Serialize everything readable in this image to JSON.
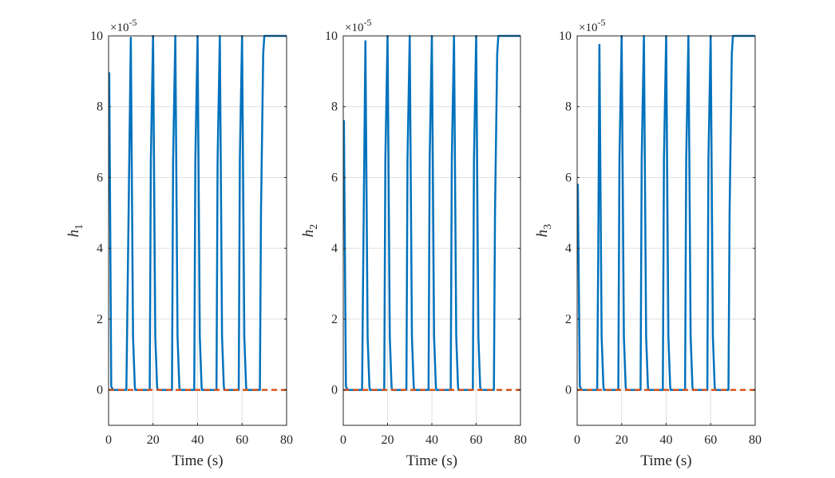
{
  "chart_data": [
    {
      "type": "line",
      "xlabel": "Time (s)",
      "ylabel_base": "h",
      "ylabel_sub": "1",
      "exponent_label": "×10",
      "exponent_power": "-5",
      "xlim": [
        0,
        80
      ],
      "ylim": [
        -1,
        10
      ],
      "xticks": [
        0,
        20,
        40,
        60,
        80
      ],
      "yticks": [
        0,
        2,
        4,
        6,
        8,
        10
      ],
      "grid": true,
      "colors": {
        "blue": "#0072BD",
        "orange": "#D95319"
      },
      "series": [
        {
          "style": "solid-blue",
          "x": [
            0,
            0.3,
            1.2,
            2,
            8,
            8.5,
            10,
            11,
            11.8,
            12,
            18.5,
            19,
            20,
            21,
            21.8,
            22,
            28.5,
            29,
            30,
            31,
            31.8,
            32,
            38.5,
            39,
            40,
            41,
            41.8,
            42,
            48.5,
            49,
            50,
            51,
            51.8,
            52,
            58.5,
            59,
            60,
            61,
            61.8,
            62,
            68,
            68.5,
            69.5,
            70,
            80
          ],
          "y": [
            8.95,
            8.95,
            0.1,
            0,
            0,
            2.5,
            9.95,
            1.5,
            0.1,
            0,
            0,
            6.5,
            10,
            1.5,
            0.1,
            0,
            0,
            6.5,
            10,
            1.5,
            0.1,
            0,
            0,
            6.5,
            10,
            1.5,
            0.1,
            0,
            0,
            6.5,
            10,
            1.5,
            0.1,
            0,
            0,
            6.5,
            10,
            1.5,
            0.1,
            0,
            0,
            5,
            9.5,
            10,
            10
          ]
        },
        {
          "style": "dashed-orange",
          "x": [
            0,
            80
          ],
          "y": [
            0,
            0
          ]
        }
      ]
    },
    {
      "type": "line",
      "xlabel": "Time (s)",
      "ylabel_base": "h",
      "ylabel_sub": "2",
      "exponent_label": "×10",
      "exponent_power": "-5",
      "xlim": [
        0,
        80
      ],
      "ylim": [
        -1,
        10
      ],
      "xticks": [
        0,
        20,
        40,
        60,
        80
      ],
      "yticks": [
        0,
        2,
        4,
        6,
        8,
        10
      ],
      "grid": true,
      "colors": {
        "blue": "#0072BD",
        "orange": "#D95319"
      },
      "series": [
        {
          "style": "solid-blue",
          "x": [
            0,
            0.3,
            1.2,
            2,
            8.5,
            9,
            10,
            11,
            11.8,
            12,
            18.5,
            19,
            20,
            21,
            21.8,
            22,
            28.5,
            29,
            30,
            31,
            31.8,
            32,
            38.5,
            39,
            40,
            41,
            41.8,
            42,
            48.5,
            49,
            50,
            51,
            51.8,
            52,
            58.5,
            59,
            60,
            61,
            61.8,
            62,
            68,
            68.5,
            69.5,
            70,
            80
          ],
          "y": [
            7.6,
            7.6,
            0.1,
            0,
            0,
            3.5,
            9.85,
            1.5,
            0.1,
            0,
            0,
            6.5,
            10,
            1.5,
            0.1,
            0,
            0,
            6.5,
            10,
            1.5,
            0.1,
            0,
            0,
            6.5,
            10,
            1.5,
            0.1,
            0,
            0,
            6.5,
            10,
            1.5,
            0.1,
            0,
            0,
            6.5,
            10,
            1.5,
            0.1,
            0,
            0,
            5,
            9.5,
            10,
            10
          ]
        },
        {
          "style": "dashed-orange",
          "x": [
            0,
            80
          ],
          "y": [
            0,
            0
          ]
        }
      ]
    },
    {
      "type": "line",
      "xlabel": "Time (s)",
      "ylabel_base": "h",
      "ylabel_sub": "3",
      "exponent_label": "×10",
      "exponent_power": "-5",
      "xlim": [
        0,
        80
      ],
      "ylim": [
        -1,
        10
      ],
      "xticks": [
        0,
        20,
        40,
        60,
        80
      ],
      "yticks": [
        0,
        2,
        4,
        6,
        8,
        10
      ],
      "grid": true,
      "colors": {
        "blue": "#0072BD",
        "orange": "#D95319"
      },
      "series": [
        {
          "style": "solid-blue",
          "x": [
            0,
            0.3,
            1.2,
            2,
            9,
            9.5,
            10,
            11,
            11.8,
            12,
            18.5,
            19,
            20,
            21,
            21.8,
            22,
            28.5,
            29,
            30,
            31,
            31.8,
            32,
            38.5,
            39,
            40,
            41,
            41.8,
            42,
            48.5,
            49,
            50,
            51,
            51.8,
            52,
            58.5,
            59,
            60,
            61,
            61.8,
            62,
            68,
            68.5,
            69.5,
            70,
            80
          ],
          "y": [
            5.8,
            5.8,
            0.1,
            0,
            0,
            4,
            9.75,
            1.5,
            0.1,
            0,
            0,
            6.5,
            10,
            1.5,
            0.1,
            0,
            0,
            6.5,
            10,
            1.5,
            0.1,
            0,
            0,
            6.5,
            10,
            1.5,
            0.1,
            0,
            0,
            6.5,
            10,
            1.5,
            0.1,
            0,
            0,
            6.5,
            10,
            1.5,
            0.1,
            0,
            0,
            5,
            9.5,
            10,
            10
          ]
        },
        {
          "style": "dashed-orange",
          "x": [
            0,
            80
          ],
          "y": [
            0,
            0
          ]
        }
      ]
    }
  ]
}
